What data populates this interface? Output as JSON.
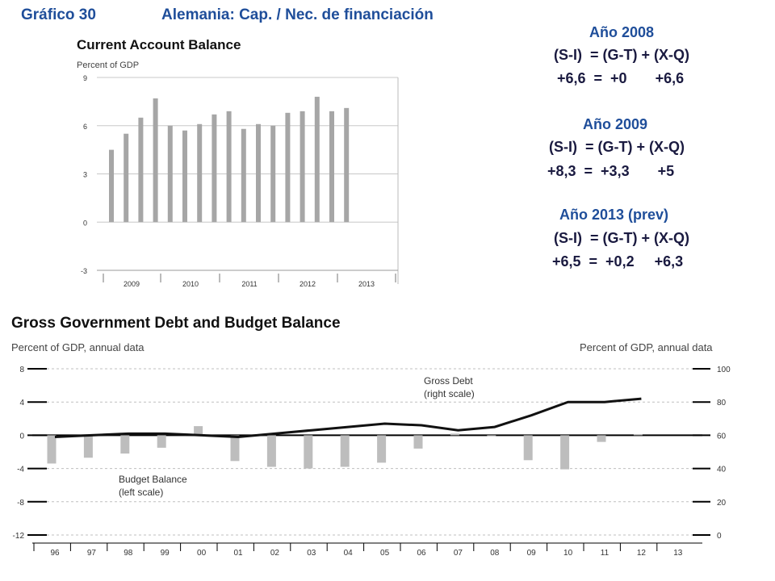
{
  "header": {
    "figure_label": "Gráfico 30",
    "figure_title": "Alemania: Cap. / Nec. de financiación"
  },
  "equations": [
    {
      "year": "Año 2008",
      "formula": "(S-I)  = (G-T) + (X-Q)",
      "values": "+6,6  =  +0       +6,6"
    },
    {
      "year": "Año 2009",
      "formula": "(S-I)  = (G-T) + (X-Q)",
      "values": "+8,3  =  +3,3       +5"
    },
    {
      "year": "Año 2013 (prev)",
      "formula": "(S-I)  = (G-T) + (X-Q)",
      "values": "+6,5  =  +0,2     +6,3"
    }
  ],
  "colors": {
    "header": "#1f4e9a",
    "bars": "#a6a6a6",
    "debt_line": "#111111",
    "budget_bars": "#bdbdbd"
  },
  "chart_data": [
    {
      "type": "bar",
      "title": "Current Account Balance",
      "ylabel": "Percent of GDP",
      "ylim": [
        -3,
        9
      ],
      "yticks": [
        "9",
        "6",
        "3",
        "0",
        "-3"
      ],
      "ytick_values": [
        9,
        6,
        3,
        0,
        -3
      ],
      "year_labels": [
        "2009",
        "2010",
        "2011",
        "2012",
        "2013"
      ],
      "values": [
        4.5,
        5.5,
        6.5,
        7.7,
        6.0,
        5.7,
        6.1,
        6.7,
        6.9,
        5.8,
        6.1,
        6.0,
        6.8,
        6.9,
        7.8,
        6.9,
        7.1
      ],
      "grid": true
    },
    {
      "type": "bar+line",
      "title": "Gross Government Debt and Budget Balance",
      "ylabel_left": "Percent of GDP, annual data",
      "ylabel_right": "Percent of GDP, annual data",
      "categories": [
        "96",
        "97",
        "98",
        "99",
        "00",
        "01",
        "02",
        "03",
        "04",
        "05",
        "06",
        "07",
        "08",
        "09",
        "10",
        "11",
        "12",
        "13"
      ],
      "left_ylim": [
        -12,
        8
      ],
      "left_ticks": [
        "8",
        "4",
        "0",
        "-4",
        "-8",
        "-12"
      ],
      "left_tick_values": [
        8,
        4,
        0,
        -4,
        -8,
        -12
      ],
      "right_ylim": [
        0,
        100
      ],
      "right_ticks": [
        "100",
        "80",
        "60",
        "40",
        "20",
        "0"
      ],
      "right_tick_values": [
        100,
        80,
        60,
        40,
        20,
        0
      ],
      "series": [
        {
          "name": "Budget Balance (left scale)",
          "label_lines": [
            "Budget Balance",
            "(left scale)"
          ],
          "axis": "left",
          "values": [
            -3.4,
            -2.7,
            -2.2,
            -1.5,
            1.1,
            -3.1,
            -3.8,
            -4.0,
            -3.8,
            -3.3,
            -1.6,
            0.2,
            -0.1,
            -3.0,
            -4.1,
            -0.8,
            0.1,
            null
          ]
        },
        {
          "name": "Gross Debt (right scale)",
          "label_lines": [
            "Gross Debt",
            "(right scale)"
          ],
          "axis": "right",
          "values": [
            59,
            60,
            61,
            61,
            60,
            59,
            61,
            63,
            65,
            67,
            66,
            63,
            65,
            72,
            80,
            80,
            82,
            null
          ]
        }
      ],
      "grid": true
    }
  ]
}
